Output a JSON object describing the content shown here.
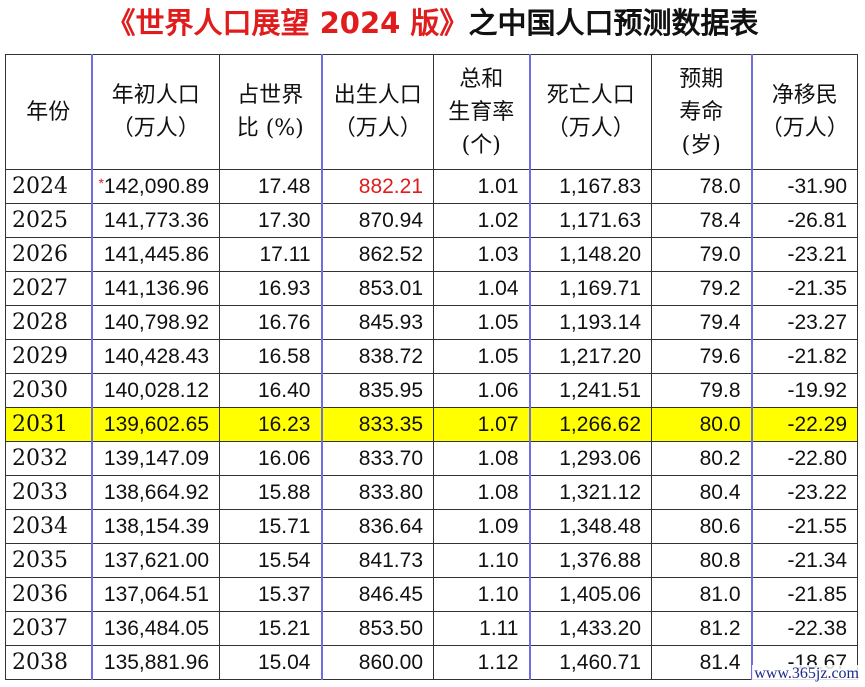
{
  "title": {
    "red": "《世界人口展望 2024 版》",
    "black": "之中国人口预测数据表"
  },
  "columns": [
    [
      "年份"
    ],
    [
      "年初人口",
      "（万人）"
    ],
    [
      "占世界",
      "比 (%)"
    ],
    [
      "出生人口",
      "（万人）"
    ],
    [
      "总和",
      "生育率",
      "(个)"
    ],
    [
      "死亡人口",
      "（万人）"
    ],
    [
      "预期",
      "寿命",
      "(岁)"
    ],
    [
      "净移民",
      "（万人）"
    ]
  ],
  "rows": [
    [
      "2024",
      "142,090.89",
      "17.48",
      "882.21",
      "1.01",
      "1,167.83",
      "78.0",
      "-31.90"
    ],
    [
      "2025",
      "141,773.36",
      "17.30",
      "870.94",
      "1.02",
      "1,171.63",
      "78.4",
      "-26.81"
    ],
    [
      "2026",
      "141,445.86",
      "17.11",
      "862.52",
      "1.03",
      "1,148.20",
      "79.0",
      "-23.21"
    ],
    [
      "2027",
      "141,136.96",
      "16.93",
      "853.01",
      "1.04",
      "1,169.71",
      "79.2",
      "-21.35"
    ],
    [
      "2028",
      "140,798.92",
      "16.76",
      "845.93",
      "1.05",
      "1,193.14",
      "79.4",
      "-23.27"
    ],
    [
      "2029",
      "140,428.43",
      "16.58",
      "838.72",
      "1.05",
      "1,217.20",
      "79.6",
      "-21.82"
    ],
    [
      "2030",
      "140,028.12",
      "16.40",
      "835.95",
      "1.06",
      "1,241.51",
      "79.8",
      "-19.92"
    ],
    [
      "2031",
      "139,602.65",
      "16.23",
      "833.35",
      "1.07",
      "1,266.62",
      "80.0",
      "-22.29"
    ],
    [
      "2032",
      "139,147.09",
      "16.06",
      "833.70",
      "1.08",
      "1,293.06",
      "80.2",
      "-22.80"
    ],
    [
      "2033",
      "138,664.92",
      "15.88",
      "833.80",
      "1.08",
      "1,321.12",
      "80.4",
      "-23.22"
    ],
    [
      "2034",
      "138,154.39",
      "15.71",
      "836.64",
      "1.09",
      "1,348.48",
      "80.6",
      "-21.55"
    ],
    [
      "2035",
      "137,621.00",
      "15.54",
      "841.73",
      "1.10",
      "1,376.88",
      "80.8",
      "-21.34"
    ],
    [
      "2036",
      "137,064.51",
      "15.37",
      "846.45",
      "1.10",
      "1,405.06",
      "81.0",
      "-21.85"
    ],
    [
      "2037",
      "136,484.05",
      "15.21",
      "853.50",
      "1.11",
      "1,433.20",
      "81.2",
      "-22.38"
    ],
    [
      "2038",
      "135,881.96",
      "15.04",
      "860.00",
      "1.12",
      "1,460.71",
      "81.4",
      "-18.67"
    ]
  ],
  "highlight_year": "2031",
  "asterisk": "*",
  "watermark": "www.365jz.com",
  "colors": {
    "title_red": "#e01c1c",
    "highlight": "#ffff00",
    "column_rule": "#6e6ee0"
  }
}
